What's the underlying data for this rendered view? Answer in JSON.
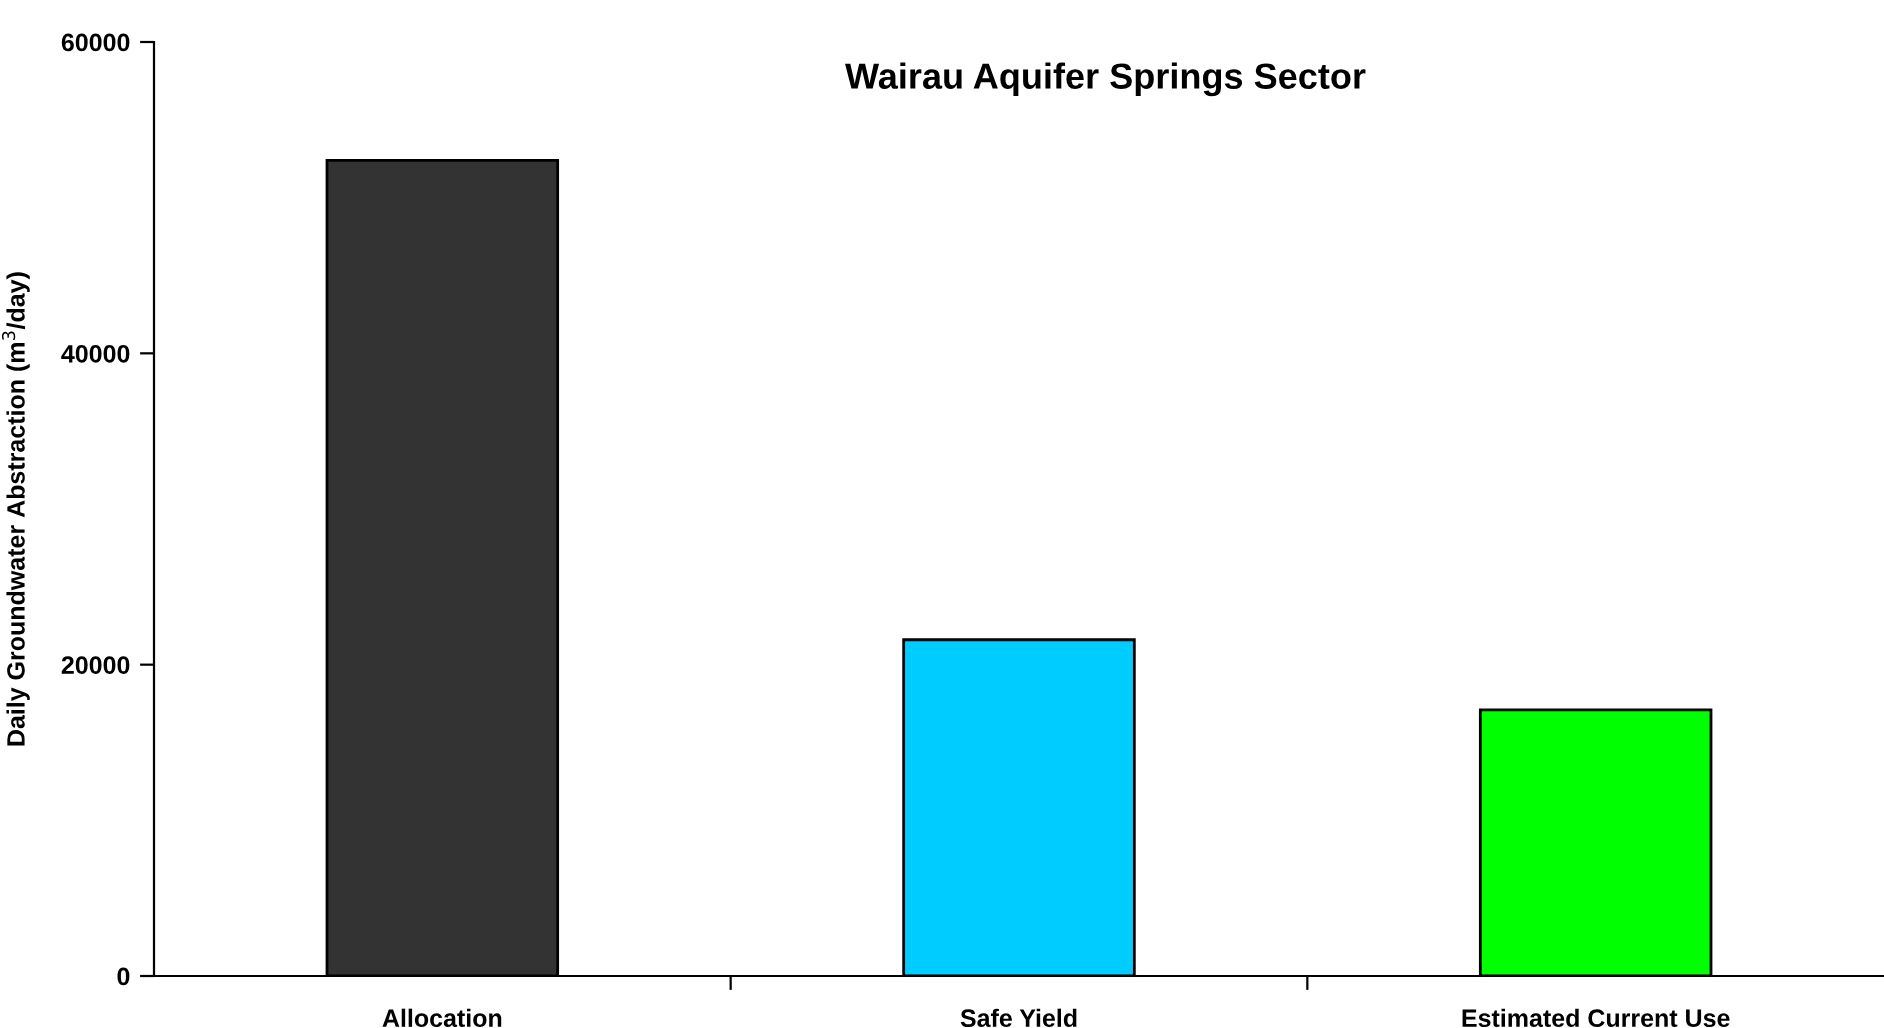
{
  "chart_data": {
    "type": "bar",
    "title": "Wairau Aquifer Springs Sector",
    "ylabel": "Daily Groundwater Abstraction (m$^{3}$/day)",
    "categories": [
      "Allocation",
      "Safe Yield",
      "Estimated Current Use"
    ],
    "values": [
      52400,
      21600,
      17100
    ],
    "colors": [
      "#333333",
      "#00ccff",
      "#00ff00"
    ],
    "ylim": [
      0,
      60000
    ],
    "yticks": [
      0,
      20000,
      40000,
      60000
    ],
    "grid": false,
    "legend": false
  }
}
